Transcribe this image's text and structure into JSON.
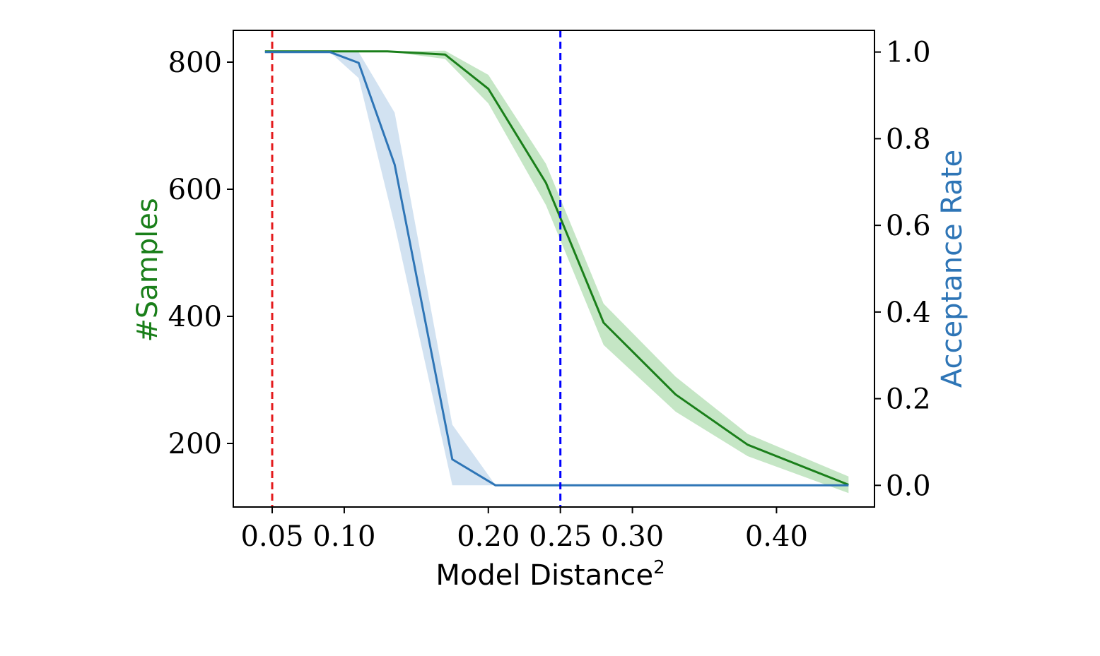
{
  "chart_data": {
    "type": "line",
    "title": "",
    "xlabel": "Model Distance",
    "xlabel_superscript": "2",
    "ylabel_left": "#Samples",
    "ylabel_right": "Acceptance Rate",
    "xlim": [
      0.023,
      0.468
    ],
    "ylim_left": [
      100,
      850
    ],
    "ylim_right": [
      -0.05,
      1.05
    ],
    "x_ticks": [
      {
        "value": 0.05,
        "label": "0.05"
      },
      {
        "value": 0.1,
        "label": "0.10"
      },
      {
        "value": 0.2,
        "label": "0.20"
      },
      {
        "value": 0.25,
        "label": "0.25"
      },
      {
        "value": 0.3,
        "label": "0.30"
      },
      {
        "value": 0.4,
        "label": "0.40"
      }
    ],
    "y_left_ticks": [
      {
        "value": 200,
        "label": "200"
      },
      {
        "value": 400,
        "label": "400"
      },
      {
        "value": 600,
        "label": "600"
      },
      {
        "value": 800,
        "label": "800"
      }
    ],
    "y_right_ticks": [
      {
        "value": 0.0,
        "label": "0.0"
      },
      {
        "value": 0.2,
        "label": "0.2"
      },
      {
        "value": 0.4,
        "label": "0.4"
      },
      {
        "value": 0.6,
        "label": "0.6"
      },
      {
        "value": 0.8,
        "label": "0.8"
      },
      {
        "value": 1.0,
        "label": "1.0"
      }
    ],
    "reference_lines": [
      {
        "name": "red-reference-line",
        "x": 0.05,
        "color": "#e41a1c",
        "style": "dashed"
      },
      {
        "name": "blue-reference-line",
        "x": 0.25,
        "color": "#0000ff",
        "style": "dashed"
      }
    ],
    "series": [
      {
        "name": "#Samples",
        "axis": "left",
        "color": "#1a7f1a",
        "band_color": "#7fc77f",
        "x": [
          0.045,
          0.09,
          0.13,
          0.17,
          0.2,
          0.24,
          0.28,
          0.33,
          0.38,
          0.45
        ],
        "values": [
          817,
          817,
          817,
          812,
          758,
          610,
          390,
          277,
          198,
          135
        ],
        "lower": [
          817,
          817,
          817,
          805,
          735,
          575,
          355,
          250,
          180,
          122
        ],
        "upper": [
          817,
          817,
          817,
          818,
          780,
          640,
          420,
          305,
          215,
          148
        ]
      },
      {
        "name": "Acceptance Rate",
        "axis": "right",
        "color": "#2e75b6",
        "band_color": "#9bbfe0",
        "x": [
          0.045,
          0.09,
          0.11,
          0.135,
          0.175,
          0.205,
          0.45
        ],
        "values": [
          1.0,
          1.0,
          0.975,
          0.74,
          0.06,
          0.0,
          0.0
        ],
        "lower": [
          1.0,
          1.0,
          0.94,
          0.6,
          0.0,
          0.0,
          0.0
        ],
        "upper": [
          1.0,
          1.0,
          1.0,
          0.86,
          0.14,
          0.0,
          0.0
        ]
      }
    ]
  }
}
